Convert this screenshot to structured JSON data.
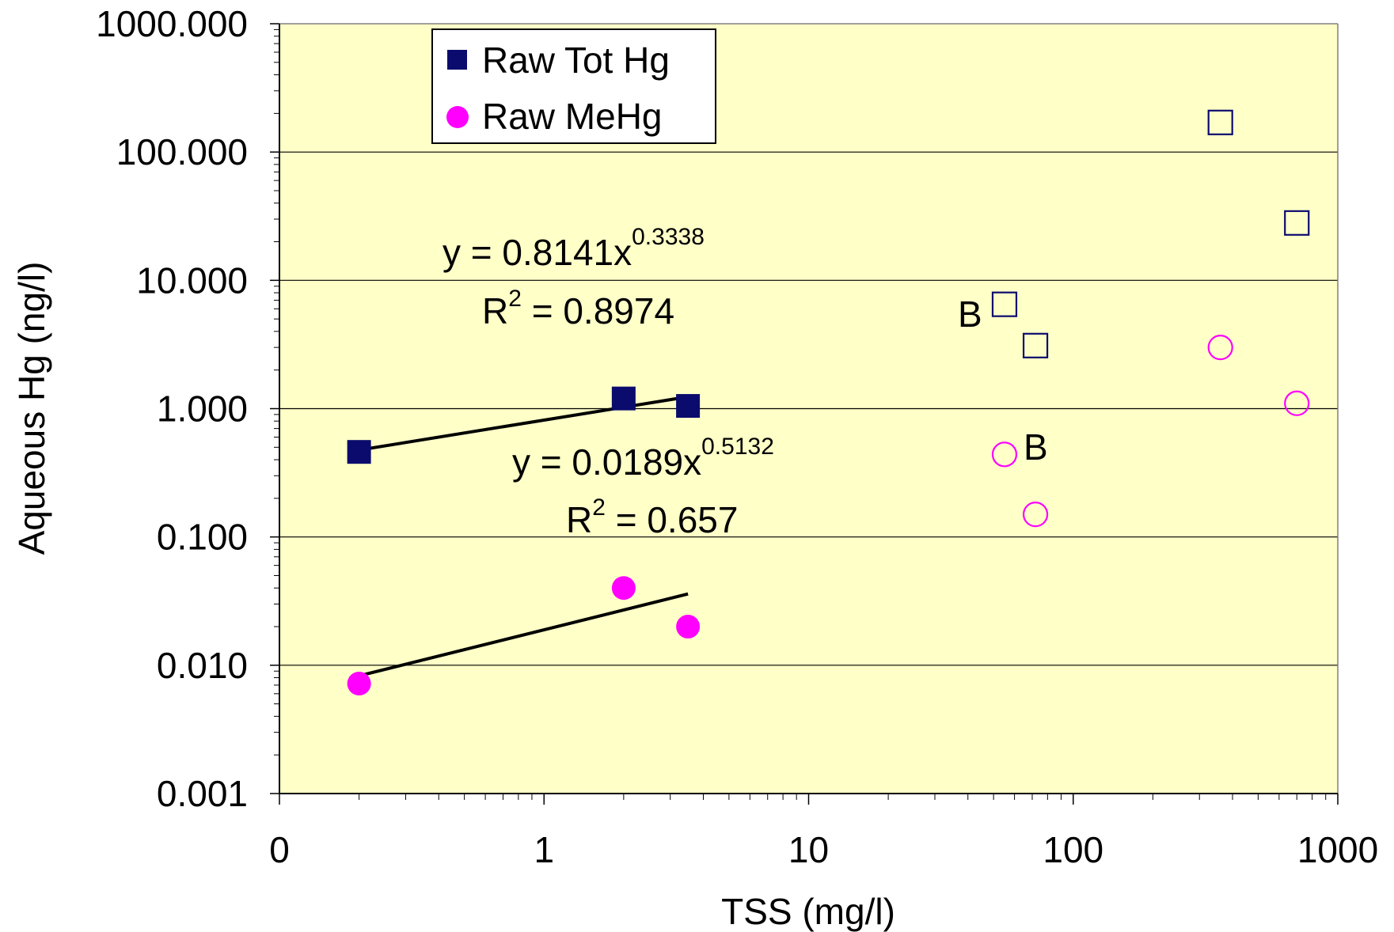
{
  "chart_data": {
    "type": "scatter",
    "xlabel": "TSS (mg/l)",
    "ylabel": "Aqueous Hg (ng/l)",
    "x_scale": "log",
    "y_scale": "log",
    "xlim": [
      0.1,
      1000
    ],
    "ylim": [
      0.001,
      1000
    ],
    "x_tick_labels": [
      "0",
      "1",
      "10",
      "100",
      "1000"
    ],
    "y_tick_labels": [
      "0.001",
      "0.010",
      "0.100",
      "1.000",
      "10.000",
      "100.000",
      "1000.000"
    ],
    "grid": "horizontal",
    "plot_background": "#FFFFC8",
    "legend": {
      "placement": "top-left",
      "entries": [
        "Raw Tot Hg",
        "Raw MeHg"
      ]
    },
    "series": [
      {
        "name": "Raw Tot Hg",
        "marker": "filled-square",
        "color": "#0B0B6E",
        "points": [
          {
            "x": 0.2,
            "y": 0.46
          },
          {
            "x": 2.0,
            "y": 1.2
          },
          {
            "x": 3.5,
            "y": 1.05
          }
        ]
      },
      {
        "name": "Raw MeHg",
        "marker": "filled-circle",
        "color": "#FF00FF",
        "points": [
          {
            "x": 0.2,
            "y": 0.0072
          },
          {
            "x": 2.0,
            "y": 0.04
          },
          {
            "x": 3.5,
            "y": 0.02
          }
        ]
      },
      {
        "marker": "open-square",
        "color": "#0B0B6E",
        "points": [
          {
            "x": 55,
            "y": 6.5,
            "label": "B"
          },
          {
            "x": 72,
            "y": 3.1
          },
          {
            "x": 360,
            "y": 170
          },
          {
            "x": 700,
            "y": 28
          }
        ]
      },
      {
        "marker": "open-circle",
        "color": "#FF00FF",
        "points": [
          {
            "x": 55,
            "y": 0.44,
            "label": "B"
          },
          {
            "x": 72,
            "y": 0.15
          },
          {
            "x": 360,
            "y": 3.0
          },
          {
            "x": 700,
            "y": 1.1
          }
        ]
      }
    ],
    "trendlines": [
      {
        "type": "power",
        "coef": 0.8141,
        "exponent": 0.3338,
        "x_range": [
          0.2,
          3.5
        ],
        "equation": {
          "base": "y = 0.8141x",
          "exp": "0.3338"
        },
        "r2": {
          "label": "R",
          "sup": "2",
          "value": " = 0.8974"
        }
      },
      {
        "type": "power",
        "coef": 0.0189,
        "exponent": 0.5132,
        "x_range": [
          0.2,
          3.5
        ],
        "equation": {
          "base": "y = 0.0189x",
          "exp": "0.5132"
        },
        "r2": {
          "label": "R",
          "sup": "2",
          "value": " = 0.657"
        }
      }
    ]
  }
}
